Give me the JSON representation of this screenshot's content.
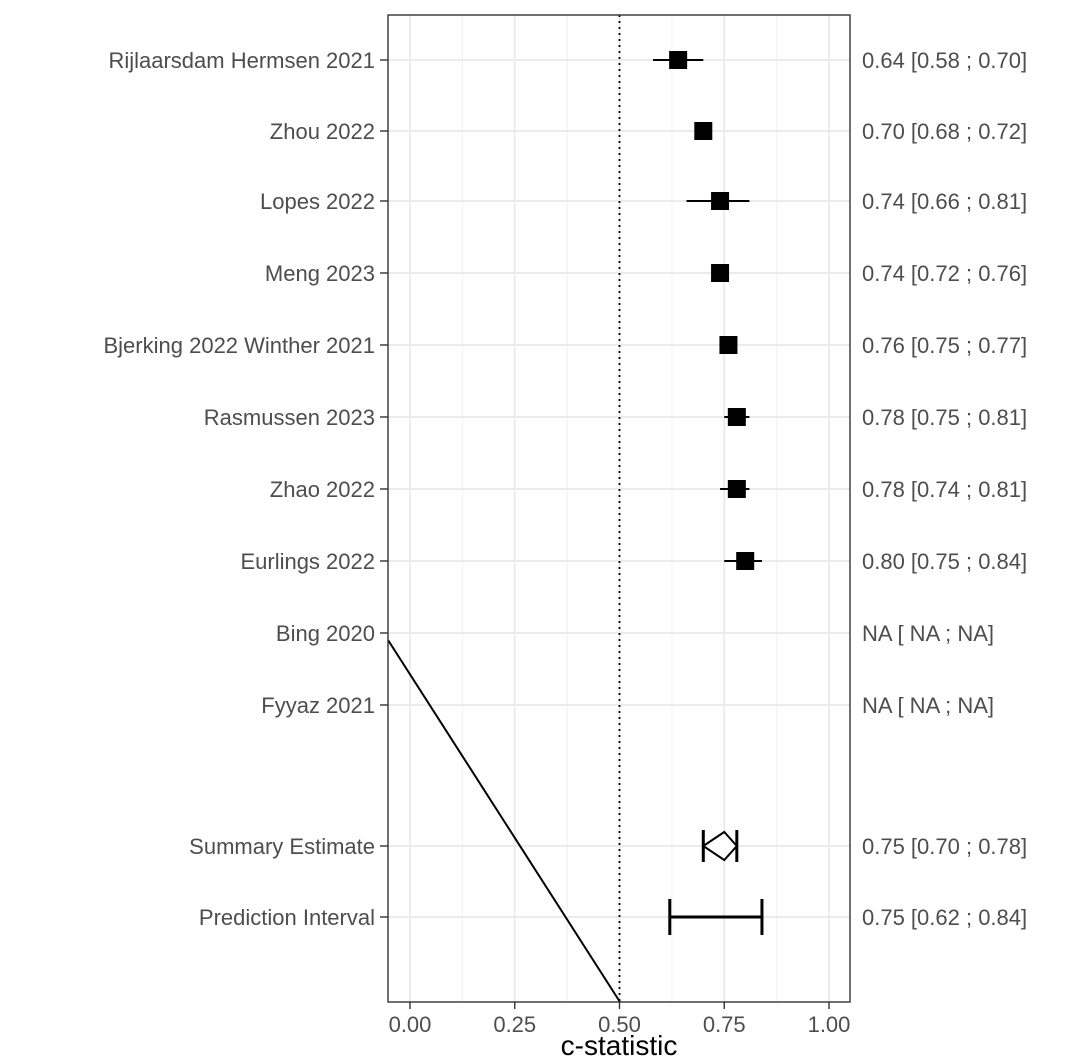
{
  "chart_data": {
    "type": "forest",
    "xlabel": "c-statistic",
    "xlim": [
      -0.05,
      1.05
    ],
    "xticks": [
      {
        "value": 0.0,
        "label": "0.00"
      },
      {
        "value": 0.25,
        "label": "0.25"
      },
      {
        "value": 0.5,
        "label": "0.50"
      },
      {
        "value": 0.75,
        "label": "0.75"
      },
      {
        "value": 1.0,
        "label": "1.00"
      }
    ],
    "reference_line": 0.5,
    "grid": true,
    "studies": [
      {
        "label": "Rijlaarsdam Hermsen 2021",
        "estimate": 0.64,
        "lower": 0.58,
        "upper": 0.7,
        "text": "0.64 [0.58 ; 0.70]"
      },
      {
        "label": "Zhou 2022",
        "estimate": 0.7,
        "lower": 0.68,
        "upper": 0.72,
        "text": "0.70 [0.68 ; 0.72]"
      },
      {
        "label": "Lopes 2022",
        "estimate": 0.74,
        "lower": 0.66,
        "upper": 0.81,
        "text": "0.74 [0.66 ; 0.81]"
      },
      {
        "label": "Meng 2023",
        "estimate": 0.74,
        "lower": 0.72,
        "upper": 0.76,
        "text": "0.74 [0.72 ; 0.76]"
      },
      {
        "label": "Bjerking 2022 Winther 2021",
        "estimate": 0.76,
        "lower": 0.75,
        "upper": 0.77,
        "text": "0.76 [0.75 ; 0.77]"
      },
      {
        "label": "Rasmussen 2023",
        "estimate": 0.78,
        "lower": 0.75,
        "upper": 0.81,
        "text": "0.78 [0.75 ; 0.81]"
      },
      {
        "label": "Zhao 2022",
        "estimate": 0.78,
        "lower": 0.74,
        "upper": 0.81,
        "text": "0.78 [0.74 ; 0.81]"
      },
      {
        "label": "Eurlings 2022",
        "estimate": 0.8,
        "lower": 0.75,
        "upper": 0.84,
        "text": "0.80 [0.75 ; 0.84]"
      },
      {
        "label": "Bing 2020",
        "estimate": null,
        "lower": null,
        "upper": null,
        "text": "NA [  NA ;   NA]"
      },
      {
        "label": "Fyyaz 2021",
        "estimate": null,
        "lower": null,
        "upper": null,
        "text": "NA [  NA ;   NA]"
      }
    ],
    "summary": {
      "label": "Summary Estimate",
      "estimate": 0.75,
      "lower": 0.7,
      "upper": 0.78,
      "text": "0.75 [0.70 ; 0.78]"
    },
    "prediction": {
      "label": "Prediction Interval",
      "estimate": 0.75,
      "lower": 0.62,
      "upper": 0.84,
      "text": "0.75 [0.62 ; 0.84]"
    }
  }
}
